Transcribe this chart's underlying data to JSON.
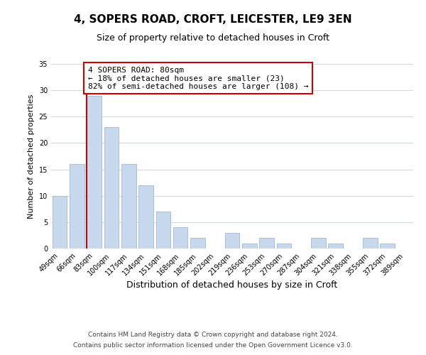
{
  "title": "4, SOPERS ROAD, CROFT, LEICESTER, LE9 3EN",
  "subtitle": "Size of property relative to detached houses in Croft",
  "xlabel": "Distribution of detached houses by size in Croft",
  "ylabel": "Number of detached properties",
  "bar_labels": [
    "49sqm",
    "66sqm",
    "83sqm",
    "100sqm",
    "117sqm",
    "134sqm",
    "151sqm",
    "168sqm",
    "185sqm",
    "202sqm",
    "219sqm",
    "236sqm",
    "253sqm",
    "270sqm",
    "287sqm",
    "304sqm",
    "321sqm",
    "338sqm",
    "355sqm",
    "372sqm",
    "389sqm"
  ],
  "bar_values": [
    10,
    16,
    29,
    23,
    16,
    12,
    7,
    4,
    2,
    0,
    3,
    1,
    2,
    1,
    0,
    2,
    1,
    0,
    2,
    1,
    0
  ],
  "bar_color": "#c9d9ed",
  "bar_edge_color": "#aabfd4",
  "grid_color": "#d0d8e8",
  "vline_x_index": 2,
  "vline_color": "#cc0000",
  "annotation_text": "4 SOPERS ROAD: 80sqm\n← 18% of detached houses are smaller (23)\n82% of semi-detached houses are larger (108) →",
  "annotation_box_color": "#ffffff",
  "annotation_box_edge_color": "#cc0000",
  "ylim": [
    0,
    35
  ],
  "yticks": [
    0,
    5,
    10,
    15,
    20,
    25,
    30,
    35
  ],
  "footer_line1": "Contains HM Land Registry data © Crown copyright and database right 2024.",
  "footer_line2": "Contains public sector information licensed under the Open Government Licence v3.0.",
  "background_color": "#ffffff",
  "title_fontsize": 11,
  "subtitle_fontsize": 9,
  "xlabel_fontsize": 9,
  "ylabel_fontsize": 8,
  "tick_fontsize": 7,
  "annotation_fontsize": 8,
  "footer_fontsize": 6.5
}
